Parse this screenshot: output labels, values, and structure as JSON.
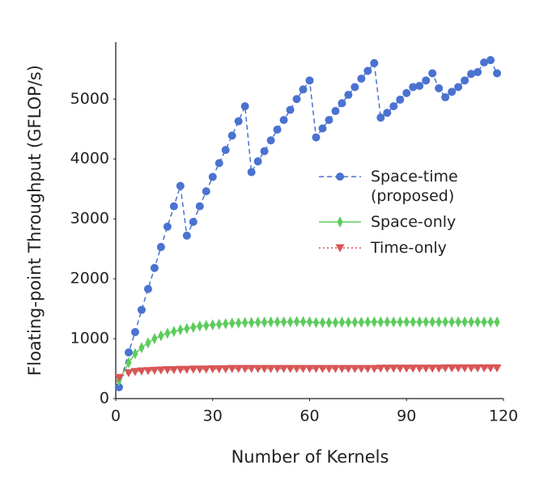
{
  "chart_data": {
    "type": "line",
    "xlabel": "Number of Kernels",
    "ylabel": "Floating-point Throughput (GFLOP/s)",
    "x": [
      1,
      4,
      6,
      8,
      10,
      12,
      14,
      16,
      18,
      20,
      22,
      24,
      26,
      28,
      30,
      32,
      34,
      36,
      38,
      40,
      42,
      44,
      46,
      48,
      50,
      52,
      54,
      56,
      58,
      60,
      62,
      64,
      66,
      68,
      70,
      72,
      74,
      76,
      78,
      80,
      82,
      84,
      86,
      88,
      90,
      92,
      94,
      96,
      98,
      100,
      102,
      104,
      106,
      108,
      110,
      112,
      114,
      116,
      118
    ],
    "series": [
      {
        "name": "Space-time\n(proposed)",
        "color": "#4a72d0",
        "linestyle": "dashed",
        "marker": "circle",
        "values": [
          190,
          770,
          1110,
          1480,
          1830,
          2180,
          2530,
          2870,
          3210,
          3550,
          2720,
          2950,
          3210,
          3460,
          3700,
          3930,
          4150,
          4390,
          4630,
          4880,
          3780,
          3960,
          4130,
          4310,
          4490,
          4650,
          4820,
          5000,
          5160,
          5310,
          4360,
          4510,
          4650,
          4800,
          4930,
          5070,
          5200,
          5340,
          5470,
          5600,
          4690,
          4770,
          4880,
          4990,
          5100,
          5200,
          5220,
          5310,
          5430,
          5180,
          5030,
          5120,
          5200,
          5310,
          5420,
          5450,
          5610,
          5650,
          5430
        ]
      },
      {
        "name": "Space-only",
        "color": "#5ccc5c",
        "linestyle": "solid",
        "marker": "diamond",
        "values": [
          300,
          600,
          750,
          850,
          930,
          1000,
          1050,
          1090,
          1120,
          1150,
          1170,
          1190,
          1210,
          1220,
          1230,
          1240,
          1250,
          1260,
          1265,
          1270,
          1270,
          1275,
          1275,
          1280,
          1280,
          1280,
          1280,
          1285,
          1285,
          1280,
          1270,
          1270,
          1270,
          1270,
          1275,
          1275,
          1275,
          1275,
          1280,
          1280,
          1280,
          1280,
          1280,
          1280,
          1280,
          1280,
          1280,
          1280,
          1280,
          1280,
          1280,
          1280,
          1280,
          1280,
          1280,
          1280,
          1280,
          1280,
          1280
        ]
      },
      {
        "name": "Time-only",
        "color": "#d95555",
        "linestyle": "dotted",
        "marker": "triangle-down",
        "values": [
          350,
          430,
          450,
          460,
          465,
          470,
          475,
          480,
          480,
          485,
          485,
          490,
          490,
          490,
          495,
          495,
          495,
          500,
          500,
          500,
          500,
          500,
          500,
          500,
          500,
          500,
          500,
          500,
          500,
          500,
          500,
          500,
          500,
          500,
          500,
          500,
          500,
          500,
          500,
          500,
          505,
          505,
          505,
          505,
          505,
          505,
          505,
          505,
          505,
          505,
          510,
          510,
          510,
          510,
          510,
          510,
          510,
          510,
          510
        ]
      }
    ],
    "xlim": [
      0,
      120
    ],
    "xticks": [
      0,
      30,
      60,
      90,
      120
    ],
    "ylim": [
      0,
      5950
    ],
    "yticks": [
      0,
      1000,
      2000,
      3000,
      4000,
      5000
    ],
    "grid": false,
    "legend": "center right"
  }
}
